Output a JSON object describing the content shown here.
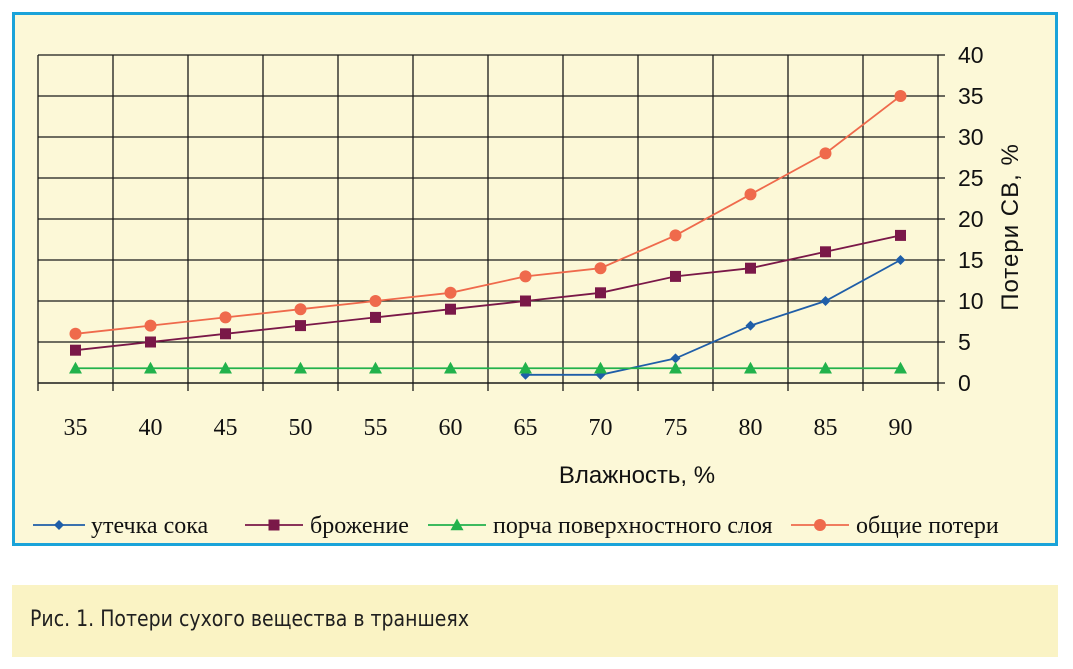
{
  "chart_data": {
    "type": "line",
    "xlabel": "Влажность, %",
    "ylabel": "Потери СВ, %",
    "x": [
      35,
      40,
      45,
      50,
      55,
      60,
      65,
      70,
      75,
      80,
      85,
      90
    ],
    "ylim": [
      0,
      40
    ],
    "yticks": [
      0,
      5,
      10,
      15,
      20,
      25,
      30,
      35,
      40
    ],
    "y_axis_side": "right",
    "grid": true,
    "legend_position": "bottom",
    "series": [
      {
        "name": "утечка сока",
        "color": "#1f5ea8",
        "marker": "diamond",
        "values": [
          null,
          null,
          null,
          null,
          null,
          null,
          1,
          1,
          3,
          7,
          10,
          15
        ]
      },
      {
        "name": "брожение",
        "color": "#7a1848",
        "marker": "square",
        "values": [
          4,
          5,
          6,
          7,
          8,
          9,
          10,
          11,
          13,
          14,
          16,
          18
        ]
      },
      {
        "name": "порча поверхностного слоя",
        "color": "#22b24c",
        "marker": "triangle",
        "values": [
          1.8,
          1.8,
          1.8,
          1.8,
          1.8,
          1.8,
          1.8,
          1.8,
          1.8,
          1.8,
          1.8,
          1.8
        ]
      },
      {
        "name": "общие потери",
        "color": "#ef6a4c",
        "marker": "circle",
        "values": [
          6,
          7,
          8,
          9,
          10,
          11,
          13,
          14,
          18,
          23,
          28,
          35
        ]
      }
    ]
  },
  "caption": "Рис. 1. Потери сухого вещества в траншеях"
}
